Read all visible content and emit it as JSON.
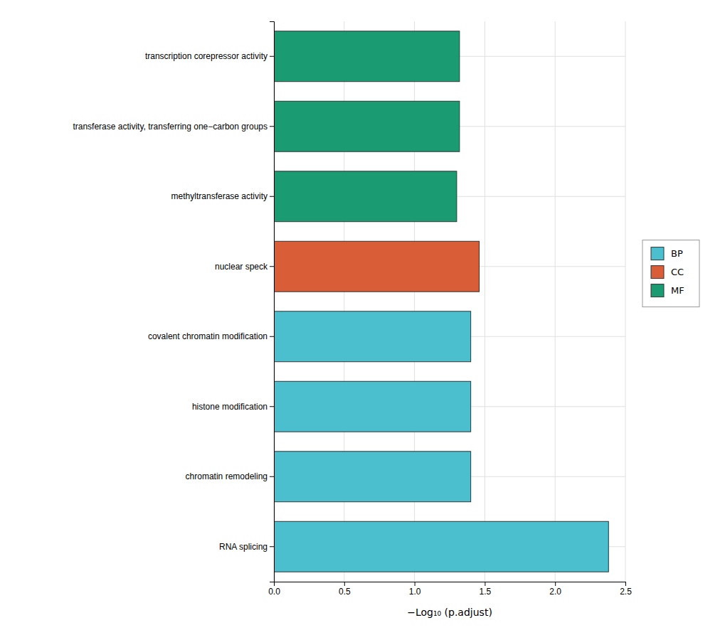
{
  "chart_data": {
    "type": "bar",
    "orientation": "horizontal",
    "stacked": true,
    "categories": [
      "RNA splicing",
      "chromatin remodeling",
      "histone modification",
      "covalent chromatin modification",
      "nuclear speck",
      "methyltransferase activity",
      "transferase activity, transferring one−carbon groups",
      "transcription corepressor activity"
    ],
    "series": [
      {
        "name": "BP",
        "color": "#4BBFCE",
        "values": [
          2.38,
          1.4,
          1.4,
          1.4,
          null,
          null,
          null,
          null
        ]
      },
      {
        "name": "CC",
        "color": "#D95E38",
        "values": [
          null,
          null,
          null,
          null,
          1.46,
          null,
          null,
          null
        ]
      },
      {
        "name": "MF",
        "color": "#1A9B72",
        "values": [
          null,
          null,
          null,
          null,
          null,
          1.3,
          1.32,
          1.32
        ]
      }
    ],
    "x_label": "−Log₁₀ (p.adjust)",
    "xlim": [
      0,
      2.5
    ],
    "xticks": [
      {
        "value": 0,
        "label": "0.0"
      },
      0.5,
      {
        "value": 1,
        "label": "1.0"
      },
      1.5,
      {
        "value": 2,
        "label": "2.0"
      },
      2.5
    ],
    "grid": true,
    "legend": "right"
  }
}
